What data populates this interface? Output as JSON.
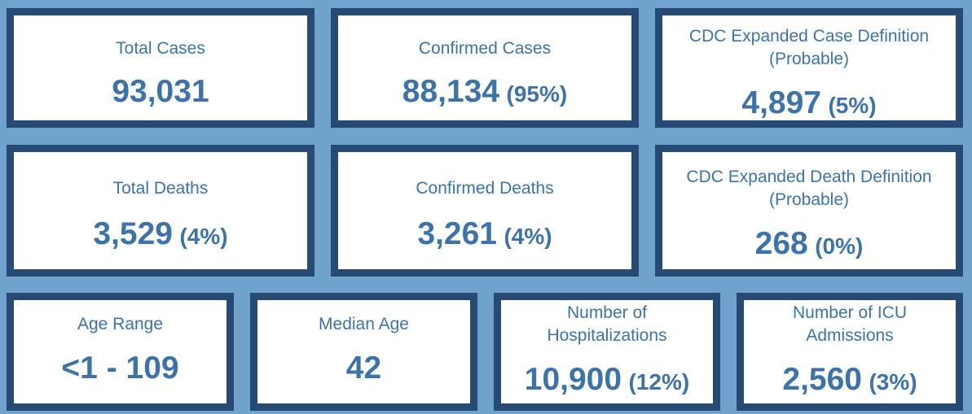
{
  "colors": {
    "background": "#6fa2cc",
    "card_border": "#264a73",
    "card_fill": "#ffffff",
    "text": "#3d73a8"
  },
  "cards": {
    "total_cases": {
      "label": "Total Cases",
      "value": "93,031",
      "pct": ""
    },
    "confirmed_cases": {
      "label": "Confirmed Cases",
      "value": "88,134",
      "pct": "(95%)"
    },
    "probable_cases": {
      "label_line1": "CDC Expanded Case Definition",
      "label_line2": "(Probable)",
      "value": "4,897",
      "pct": "(5%)"
    },
    "total_deaths": {
      "label": "Total Deaths",
      "value": "3,529",
      "pct": "(4%)"
    },
    "confirmed_deaths": {
      "label": "Confirmed Deaths",
      "value": "3,261",
      "pct": "(4%)"
    },
    "probable_deaths": {
      "label_line1": "CDC Expanded Death Definition",
      "label_line2": "(Probable)",
      "value": "268",
      "pct": "(0%)"
    },
    "age_range": {
      "label": "Age Range",
      "value": "<1 - 109",
      "pct": ""
    },
    "median_age": {
      "label": "Median Age",
      "value": "42",
      "pct": ""
    },
    "hospitalizations": {
      "label_line1": "Number of",
      "label_line2": "Hospitalizations",
      "value": "10,900",
      "pct": "(12%)"
    },
    "icu_admissions": {
      "label_line1": "Number of ICU",
      "label_line2": "Admissions",
      "value": "2,560",
      "pct": "(3%)"
    }
  }
}
